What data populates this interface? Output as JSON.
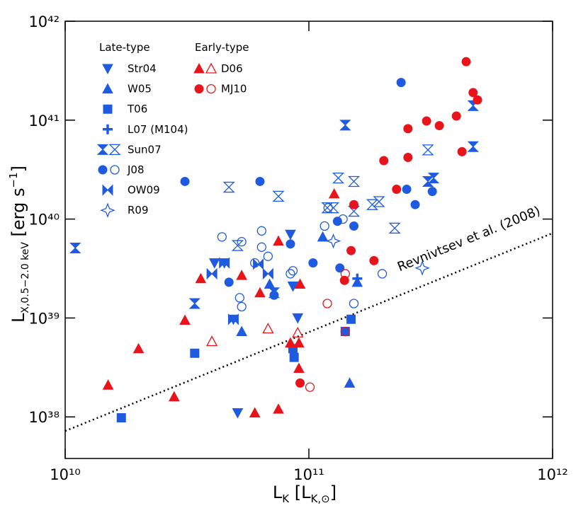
{
  "chart_data": {
    "type": "scatter",
    "xscale": "log",
    "yscale": "log",
    "xlim": [
      10000000000.0,
      1000000000000.0
    ],
    "ylim": [
      3.8e+37,
      1e+42
    ],
    "xticks": [
      {
        "value": 10000000000.0,
        "label": "10¹⁰"
      },
      {
        "value": 100000000000.0,
        "label": "10¹¹"
      },
      {
        "value": 1000000000000.0,
        "label": "10¹²"
      }
    ],
    "yticks": [
      {
        "value": 1e+38,
        "label": "10³⁸"
      },
      {
        "value": 1e+39,
        "label": "10³⁹"
      },
      {
        "value": 1e+40,
        "label": "10⁴⁰"
      },
      {
        "value": 1e+41,
        "label": "10⁴¹"
      },
      {
        "value": 1e+42,
        "label": "10⁴²"
      }
    ],
    "xlabel": {
      "main": "L",
      "sub": "K",
      "rest": " [L",
      "rest_sub": "K,⊙",
      "end": "]"
    },
    "ylabel": {
      "main": "L",
      "sub": "X,0.5−2.0 keV",
      "rest": " [erg s",
      "sup": "−1",
      "end": "]"
    },
    "line": {
      "label": "Revnivtsev et al. (2008)",
      "x": [
        10000000000.0,
        1000000000000.0
      ],
      "y": [
        7.2e+37,
        7.2e+39
      ]
    },
    "groups": [
      {
        "title": "Late-type",
        "series": [
          {
            "name": "Str04",
            "color": "#1f5be0",
            "marker": "down-triangle",
            "x": [
              41000000000.0,
              45000000000.0,
              84000000000.0,
              90000000000.0,
              51000000000.0,
              86000000000.0,
              49000000000.0
            ],
            "y": [
              3.6e+39,
              3.6e+39,
              7e+39,
              1e+39,
              1.1e+38,
              2.1e+39,
              9.7e+38
            ]
          },
          {
            "name": "W05",
            "color": "#1f5be0",
            "marker": "up-triangle",
            "x": [
              114000000000.0,
              53000000000.0,
              69000000000.0,
              147000000000.0,
              158000000000.0
            ],
            "y": [
              6.6e+39,
              7.3e+38,
              2.2e+39,
              2.2e+38,
              2.3e+39
            ]
          },
          {
            "name": "T06",
            "color": "#1f5be0",
            "marker": "square",
            "x": [
              17000000000.0,
              34000000000.0,
              86000000000.0,
              87000000000.0,
              149000000000.0,
              141000000000.0
            ],
            "y": [
              9.8e+37,
              4.4e+38,
              4.9e+38,
              4e+38,
              9.7e+38,
              7.3e+38
            ]
          },
          {
            "name": "L07 (M104)",
            "color": "#1f5be0",
            "marker": "plus",
            "x": [
              158000000000.0
            ],
            "y": [
              2.5e+39
            ]
          },
          {
            "name": "Sun07",
            "color": "#1f5be0",
            "marker": "hourglass",
            "x": [
              11000000000.0,
              141000000000.0,
              472000000000.0,
              472000000000.0,
              308000000000.0,
              325000000000.0,
              72000000000.0,
              34000000000.0,
              47000000000.0,
              132000000000.0,
              75000000000.0,
              119000000000.0,
              126000000000.0,
              153000000000.0,
              182000000000.0,
              225000000000.0,
              194000000000.0,
              308000000000.0,
              153000000000.0,
              51000000000.0
            ],
            "y": [
              5.1e+39,
              8.9e+40,
              5.4e+40,
              1.4e+41,
              2.4e+40,
              2.6e+40,
              1.8e+39,
              1.4e+39,
              2.1e+40,
              2.6e+40,
              1.7e+40,
              1.3e+40,
              1.3e+40,
              2.4e+40,
              1.4e+40,
              8.1e+39,
              1.5e+40,
              5e+40,
              1.2e+40,
              5.4e+39
            ],
            "hollow": [
              false,
              false,
              false,
              false,
              false,
              false,
              false,
              false,
              true,
              true,
              true,
              true,
              true,
              true,
              true,
              true,
              true,
              true,
              true,
              true
            ]
          },
          {
            "name": "J08",
            "color": "#1f5be0",
            "marker": "circle",
            "x": [
              31000000000.0,
              63000000000.0,
              47000000000.0,
              72000000000.0,
              84000000000.0,
              104000000000.0,
              131000000000.0,
              134000000000.0,
              153000000000.0,
              239000000000.0,
              252000000000.0,
              273000000000.0,
              321000000000.0,
              44000000000.0,
              53000000000.0,
              52000000000.0,
              53000000000.0,
              64000000000.0,
              64000000000.0,
              68000000000.0,
              60000000000.0,
              84000000000.0,
              86000000000.0,
              116000000000.0,
              120000000000.0,
              153000000000.0,
              200000000000.0,
              138000000000.0
            ],
            "y": [
              2.4e+40,
              2.4e+40,
              2.3e+39,
              1.7e+39,
              5.6e+39,
              3.6e+39,
              9.5e+39,
              3.2e+39,
              8.5e+39,
              2.4e+41,
              2e+40,
              1.4e+40,
              1.9e+40,
              6.6e+39,
              5.9e+39,
              1.6e+39,
              1.3e+39,
              7.6e+39,
              5.2e+39,
              4.2e+39,
              3.6e+39,
              2.8e+39,
              3e+39,
              8.5e+39,
              1.3e+40,
              1.4e+39,
              2.8e+39,
              1e+40
            ],
            "hollow": [
              false,
              false,
              false,
              false,
              false,
              false,
              false,
              false,
              false,
              false,
              false,
              false,
              false,
              true,
              true,
              true,
              true,
              true,
              true,
              true,
              true,
              true,
              true,
              true,
              true,
              true,
              true,
              true
            ]
          },
          {
            "name": "OW09",
            "color": "#1f5be0",
            "marker": "bowtie",
            "x": [
              40000000000.0,
              45000000000.0,
              62000000000.0,
              68000000000.0,
              49000000000.0
            ],
            "y": [
              2.8e+39,
              3.6e+39,
              3.5e+39,
              2.8e+39,
              9.7e+38
            ]
          },
          {
            "name": "R09",
            "color": "#1f5be0",
            "marker": "star",
            "x": [
              126000000000.0,
              292000000000.0
            ],
            "y": [
              6e+39,
              3.2e+39
            ],
            "hollow": [
              true,
              true
            ]
          }
        ]
      },
      {
        "title": "Early-type",
        "series": [
          {
            "name": "D06",
            "color": "#e8141c",
            "marker": "up-triangle",
            "x": [
              15000000000.0,
              20000000000.0,
              28000000000.0,
              31000000000.0,
              36000000000.0,
              53000000000.0,
              60000000000.0,
              75000000000.0,
              75000000000.0,
              63000000000.0,
              127000000000.0,
              91000000000.0,
              91000000000.0,
              92000000000.0,
              84000000000.0,
              40000000000.0,
              68000000000.0,
              90000000000.0
            ],
            "y": [
              2.1e+38,
              4.9e+38,
              1.6e+38,
              9.5e+38,
              2.5e+39,
              2.7e+39,
              1.1e+38,
              1.2e+38,
              6e+39,
              1.8e+39,
              1.8e+40,
              5.6e+38,
              3.1e+38,
              2.2e+39,
              5.6e+38,
              5.8e+38,
              7.8e+38,
              7.1e+38
            ],
            "hollow": [
              false,
              false,
              false,
              false,
              false,
              false,
              false,
              false,
              false,
              false,
              false,
              false,
              false,
              false,
              false,
              true,
              true,
              true
            ]
          },
          {
            "name": "MJ10",
            "color": "#e8141c",
            "marker": "circle",
            "x": [
              442000000000.0,
              472000000000.0,
              492000000000.0,
              343000000000.0,
              403000000000.0,
              255000000000.0,
              304000000000.0,
              425000000000.0,
              203000000000.0,
              229000000000.0,
              153000000000.0,
              149000000000.0,
              185000000000.0,
              140000000000.0,
              92000000000.0,
              255000000000.0,
              101000000000.0,
              119000000000.0,
              141000000000.0,
              141000000000.0
            ],
            "y": [
              3.9e+41,
              1.9e+41,
              1.6e+41,
              8.8e+40,
              1.1e+41,
              8.2e+40,
              9.8e+40,
              4.8e+40,
              3.9e+40,
              2e+40,
              1.4e+40,
              4.8e+39,
              3.8e+39,
              2.4e+39,
              2.2e+38,
              4.2e+40,
              2e+38,
              1.4e+39,
              7.3e+38,
              2.8e+39
            ],
            "hollow": [
              false,
              false,
              false,
              false,
              false,
              false,
              false,
              false,
              false,
              false,
              false,
              false,
              false,
              false,
              false,
              false,
              true,
              true,
              true,
              true
            ]
          }
        ]
      }
    ]
  }
}
